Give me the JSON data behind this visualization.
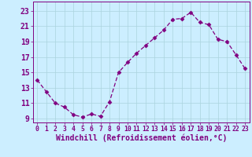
{
  "x": [
    0,
    1,
    2,
    3,
    4,
    5,
    6,
    7,
    8,
    9,
    10,
    11,
    12,
    13,
    14,
    15,
    16,
    17,
    18,
    19,
    20,
    21,
    22,
    23
  ],
  "y": [
    14.0,
    12.5,
    11.0,
    10.5,
    9.5,
    9.2,
    9.6,
    9.3,
    11.2,
    15.0,
    16.3,
    17.5,
    18.5,
    19.5,
    20.5,
    21.9,
    22.0,
    22.8,
    21.5,
    21.2,
    19.3,
    19.0,
    17.3,
    15.5
  ],
  "line_color": "#800080",
  "marker": "D",
  "marker_size": 2.5,
  "bg_color": "#cceeff",
  "grid_color": "#aad4dd",
  "xlabel": "Windchill (Refroidissement éolien,°C)",
  "ylim": [
    8.5,
    24.2
  ],
  "xlim": [
    -0.5,
    23.5
  ],
  "yticks": [
    9,
    11,
    13,
    15,
    17,
    19,
    21,
    23
  ],
  "xticks": [
    0,
    1,
    2,
    3,
    4,
    5,
    6,
    7,
    8,
    9,
    10,
    11,
    12,
    13,
    14,
    15,
    16,
    17,
    18,
    19,
    20,
    21,
    22,
    23
  ],
  "tick_color": "#800080",
  "label_color": "#800080",
  "font_size_xlabel": 7.0,
  "font_size_yticks": 7.0,
  "font_size_xticks": 5.8
}
